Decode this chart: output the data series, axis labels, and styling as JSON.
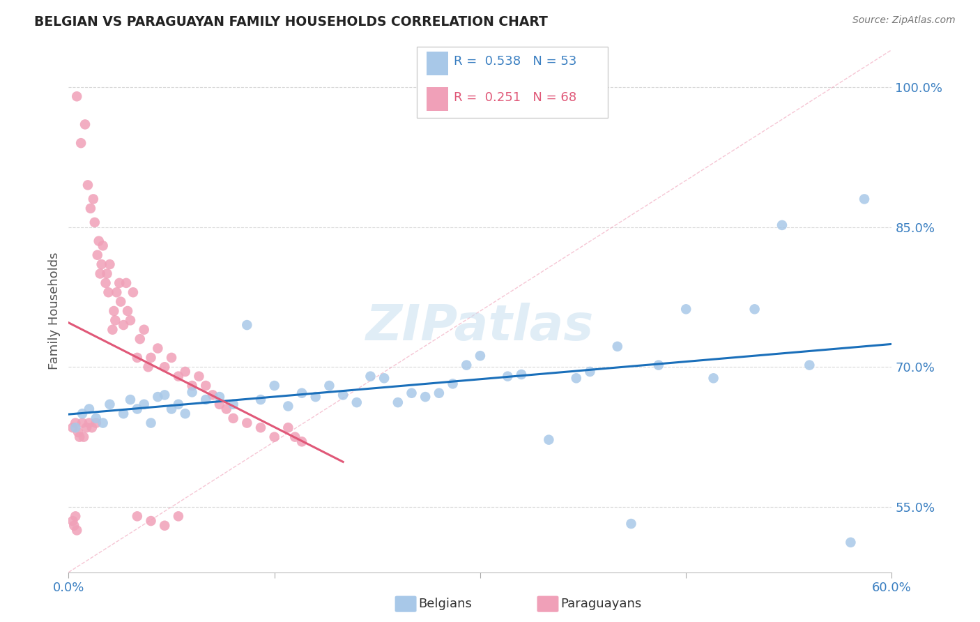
{
  "title": "BELGIAN VS PARAGUAYAN FAMILY HOUSEHOLDS CORRELATION CHART",
  "source_text": "Source: ZipAtlas.com",
  "ylabel": "Family Households",
  "xlim": [
    0.0,
    0.6
  ],
  "ylim": [
    0.48,
    1.04
  ],
  "yticks": [
    0.55,
    0.7,
    0.85,
    1.0
  ],
  "yticklabels": [
    "55.0%",
    "70.0%",
    "85.0%",
    "100.0%"
  ],
  "xtick_positions": [
    0.0,
    0.15,
    0.3,
    0.45,
    0.6
  ],
  "xticklabels": [
    "0.0%",
    "",
    "",
    "",
    "60.0%"
  ],
  "belgian_color": "#a8c8e8",
  "paraguayan_color": "#f0a0b8",
  "belgian_line_color": "#1a6fba",
  "paraguayan_line_color": "#e05878",
  "ref_line_color": "#f0a0b8",
  "watermark": "ZIPatlas",
  "legend_R_belgian": "0.538",
  "legend_N_belgian": "53",
  "legend_R_paraguayan": "0.251",
  "legend_N_paraguayan": "68",
  "belgians_x": [
    0.005,
    0.01,
    0.015,
    0.02,
    0.025,
    0.03,
    0.04,
    0.045,
    0.05,
    0.055,
    0.06,
    0.065,
    0.07,
    0.075,
    0.08,
    0.085,
    0.09,
    0.1,
    0.11,
    0.12,
    0.13,
    0.14,
    0.15,
    0.16,
    0.17,
    0.18,
    0.19,
    0.2,
    0.21,
    0.22,
    0.23,
    0.24,
    0.25,
    0.26,
    0.27,
    0.28,
    0.29,
    0.3,
    0.32,
    0.33,
    0.35,
    0.37,
    0.38,
    0.4,
    0.41,
    0.43,
    0.45,
    0.47,
    0.5,
    0.52,
    0.54,
    0.57,
    0.58
  ],
  "belgians_y": [
    0.635,
    0.65,
    0.655,
    0.645,
    0.64,
    0.66,
    0.65,
    0.665,
    0.655,
    0.66,
    0.64,
    0.668,
    0.67,
    0.655,
    0.66,
    0.65,
    0.673,
    0.665,
    0.668,
    0.66,
    0.745,
    0.665,
    0.68,
    0.658,
    0.672,
    0.668,
    0.68,
    0.67,
    0.662,
    0.69,
    0.688,
    0.662,
    0.672,
    0.668,
    0.672,
    0.682,
    0.702,
    0.712,
    0.69,
    0.692,
    0.622,
    0.688,
    0.695,
    0.722,
    0.532,
    0.702,
    0.762,
    0.688,
    0.762,
    0.852,
    0.702,
    0.512,
    0.88
  ],
  "paraguayans_x": [
    0.003,
    0.005,
    0.006,
    0.007,
    0.008,
    0.009,
    0.01,
    0.011,
    0.012,
    0.013,
    0.014,
    0.015,
    0.016,
    0.017,
    0.018,
    0.019,
    0.02,
    0.021,
    0.022,
    0.023,
    0.024,
    0.025,
    0.027,
    0.028,
    0.029,
    0.03,
    0.032,
    0.033,
    0.034,
    0.035,
    0.037,
    0.038,
    0.04,
    0.042,
    0.043,
    0.045,
    0.047,
    0.05,
    0.052,
    0.055,
    0.058,
    0.06,
    0.065,
    0.07,
    0.075,
    0.08,
    0.085,
    0.09,
    0.095,
    0.1,
    0.105,
    0.11,
    0.115,
    0.12,
    0.13,
    0.14,
    0.15,
    0.16,
    0.165,
    0.17,
    0.003,
    0.004,
    0.005,
    0.006,
    0.05,
    0.06,
    0.07,
    0.08
  ],
  "paraguayans_y": [
    0.635,
    0.64,
    0.99,
    0.63,
    0.625,
    0.94,
    0.64,
    0.625,
    0.96,
    0.635,
    0.895,
    0.64,
    0.87,
    0.635,
    0.88,
    0.855,
    0.64,
    0.82,
    0.835,
    0.8,
    0.81,
    0.83,
    0.79,
    0.8,
    0.78,
    0.81,
    0.74,
    0.76,
    0.75,
    0.78,
    0.79,
    0.77,
    0.745,
    0.79,
    0.76,
    0.75,
    0.78,
    0.71,
    0.73,
    0.74,
    0.7,
    0.71,
    0.72,
    0.7,
    0.71,
    0.69,
    0.695,
    0.68,
    0.69,
    0.68,
    0.67,
    0.66,
    0.655,
    0.645,
    0.64,
    0.635,
    0.625,
    0.635,
    0.625,
    0.62,
    0.535,
    0.53,
    0.54,
    0.525,
    0.54,
    0.535,
    0.53,
    0.54
  ]
}
